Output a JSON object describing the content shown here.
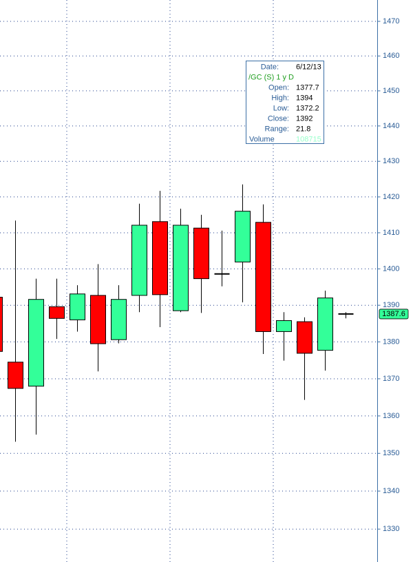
{
  "chart_data": {
    "type": "candlestick",
    "categories": [
      null,
      null,
      null,
      null,
      null,
      null,
      null,
      null,
      null,
      null,
      null,
      null,
      null,
      null,
      null,
      null,
      null,
      null
    ],
    "open": [
      1392.2,
      1374.5,
      1368,
      1389.6,
      1386,
      1392.7,
      1380.6,
      1392.7,
      1413.1,
      1388.5,
      1411.3,
      1398.6,
      1401.9,
      1412.9,
      1382.8,
      1385.5,
      1377.7,
      1387.6
    ],
    "high": [
      1392.2,
      1413.4,
      1397.3,
      1397.3,
      1395.5,
      1401.3,
      1395.5,
      1418.1,
      1421.7,
      1416.7,
      1415,
      1410.6,
      1423.5,
      1417.9,
      1388.1,
      1386.7,
      1394,
      1388.1
    ],
    "low": [
      1377.4,
      1353.1,
      1355,
      1380.8,
      1382.8,
      1372,
      1379.6,
      1388.1,
      1384,
      1388.1,
      1387.9,
      1395.2,
      1390.8,
      1376.7,
      1374.9,
      1364.3,
      1372.2,
      1386.4
    ],
    "close": [
      1377.4,
      1367.4,
      1391.6,
      1386.4,
      1393.1,
      1379.5,
      1391.6,
      1412.1,
      1392.9,
      1412.1,
      1397.3,
      1398.6,
      1416,
      1382.8,
      1385.8,
      1376.9,
      1392,
      1387.6
    ],
    "up_color": "#33ff99",
    "down_color": "#ff0000",
    "doji_color": "#000000",
    "ylim": [
      1321.4,
      1476.2
    ],
    "yticks": [
      1330,
      1340,
      1350,
      1360,
      1370,
      1380,
      1390,
      1400,
      1410,
      1420,
      1430,
      1440,
      1450,
      1460,
      1470
    ],
    "log_scale": true,
    "grid": true,
    "last_price": 1387.6,
    "tooltip": {
      "date_label": "Date:",
      "date": "6/12/13",
      "symbol": "/GC (S) 1 y D",
      "rows": [
        {
          "label": "Open:",
          "value": 1377.7
        },
        {
          "label": "High:",
          "value": 1394
        },
        {
          "label": "Low:",
          "value": 1372.2
        },
        {
          "label": "Close:",
          "value": 1392
        },
        {
          "label": "Range:",
          "value": 21.8
        }
      ],
      "volume_label": "Volume",
      "volume": 108715
    }
  }
}
